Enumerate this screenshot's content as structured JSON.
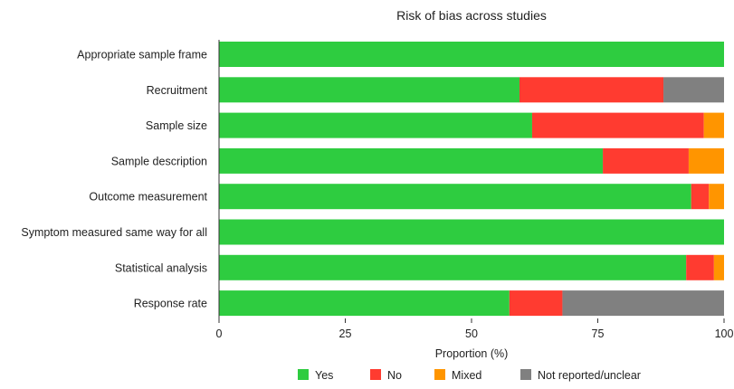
{
  "chart_data": {
    "type": "bar",
    "orientation": "horizontal",
    "stacked": true,
    "title": "Risk of bias across studies",
    "xlabel": "Proportion (%)",
    "ylabel": "",
    "xlim": [
      0,
      100
    ],
    "xticks": [
      "0",
      "25",
      "50",
      "75",
      "100"
    ],
    "grid": false,
    "legend_position": "bottom",
    "categories": [
      "Appropriate sample frame",
      "Recruitment",
      "Sample size",
      "Sample description",
      "Outcome measurement",
      "Symptom measured same way for all",
      "Statistical analysis",
      "Response rate"
    ],
    "series": [
      {
        "name": "Yes",
        "color": "#2ecc40",
        "values": [
          100,
          59.5,
          62,
          76,
          93.5,
          100,
          92.5,
          57.5
        ]
      },
      {
        "name": "No",
        "color": "#ff3b30",
        "values": [
          0,
          28.5,
          34,
          17,
          3.5,
          0,
          5.5,
          10.5
        ]
      },
      {
        "name": "Mixed",
        "color": "#ff9500",
        "values": [
          0,
          0,
          4,
          7,
          3,
          0,
          2,
          0
        ]
      },
      {
        "name": "Not reported/unclear",
        "color": "#808080",
        "values": [
          0,
          12,
          0,
          0,
          0,
          0,
          0,
          32
        ]
      }
    ]
  }
}
